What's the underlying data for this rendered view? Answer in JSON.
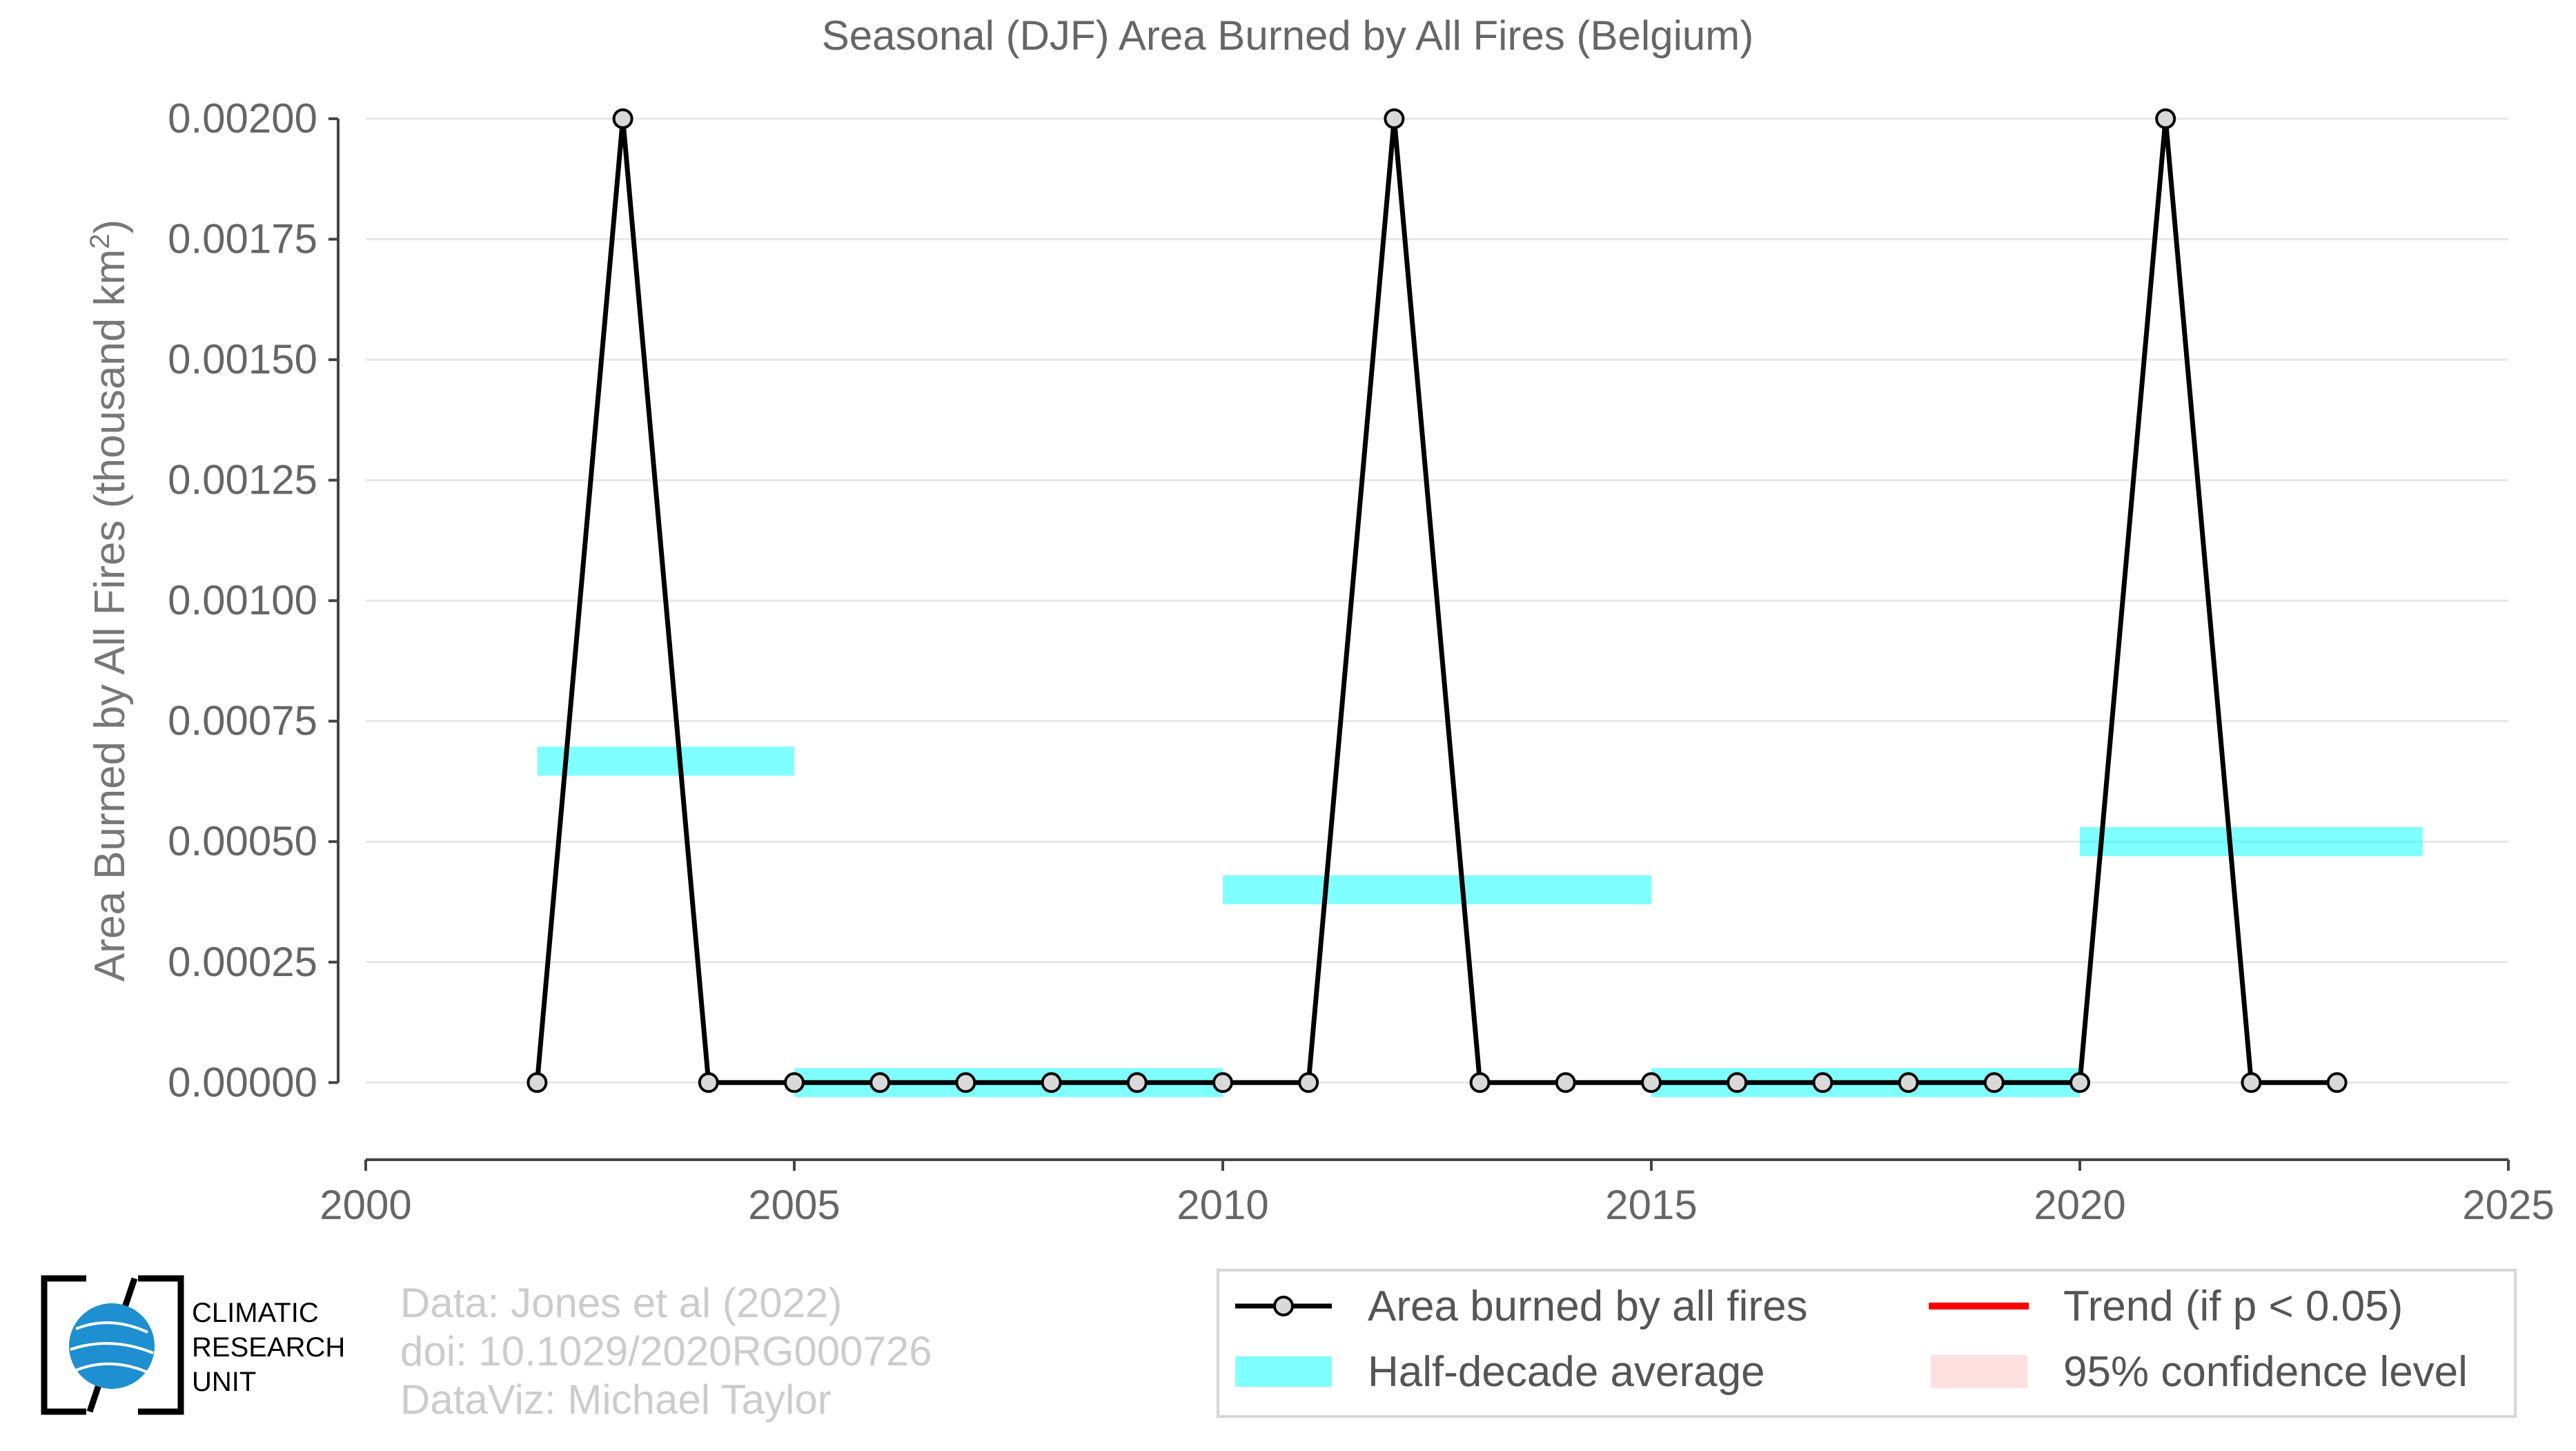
{
  "chart_data": {
    "type": "line",
    "title": "Seasonal (DJF) Area Burned by All Fires (Belgium)",
    "ylabel": "Area Burned by All Fires (thousand km",
    "ylabel_sup": "2",
    "ylabel_close": ")",
    "xlim": [
      2000,
      2025
    ],
    "ylim": [
      -0.00016,
      0.002
    ],
    "x_ticks": [
      2000,
      2005,
      2010,
      2015,
      2020,
      2025
    ],
    "x_tick_labels": [
      "2000",
      "2005",
      "2010",
      "2015",
      "2020",
      "2025"
    ],
    "y_ticks": [
      0,
      0.00025,
      0.0005,
      0.00075,
      0.001,
      0.00125,
      0.0015,
      0.00175,
      0.002
    ],
    "y_tick_labels": [
      "0.00000",
      "0.00025",
      "0.00050",
      "0.00075",
      "0.00100",
      "0.00125",
      "0.00150",
      "0.00175",
      "0.00200"
    ],
    "grid": true,
    "series": [
      {
        "name": "Area burned by all fires",
        "color": "#000000",
        "x": [
          2002,
          2003,
          2004,
          2005,
          2006,
          2007,
          2008,
          2009,
          2010,
          2011,
          2012,
          2013,
          2014,
          2015,
          2016,
          2017,
          2018,
          2019,
          2020,
          2021,
          2022,
          2023
        ],
        "y": [
          0,
          0.002,
          0,
          0,
          0,
          0,
          0,
          0,
          0,
          0,
          0.002,
          0,
          0,
          0,
          0,
          0,
          0,
          0,
          0,
          0.002,
          0,
          0
        ]
      }
    ],
    "half_decade_average": {
      "name": "Half-decade average",
      "color": "#00ffff",
      "segments": [
        {
          "x0": 2002,
          "x1": 2005,
          "value": 0.000667
        },
        {
          "x0": 2005,
          "x1": 2010,
          "value": 0.0
        },
        {
          "x0": 2010,
          "x1": 2015,
          "value": 0.0004
        },
        {
          "x0": 2015,
          "x1": 2020,
          "value": 0.0
        },
        {
          "x0": 2020,
          "x1": 2024,
          "value": 0.0005
        }
      ]
    },
    "legend": {
      "placement": "bottom-right",
      "entries": [
        {
          "label": "Area burned by all fires",
          "kind": "line-marker",
          "color": "#000000"
        },
        {
          "label": "Trend (if p < 0.05)",
          "kind": "line",
          "color": "#ff0000"
        },
        {
          "label": "Half-decade average",
          "kind": "band",
          "color": "#00ffff"
        },
        {
          "label": "95% confidence level",
          "kind": "band",
          "color": "#ffcccc"
        }
      ]
    }
  },
  "credits": {
    "line1": "Data: Jones et al (2022)",
    "line2": "doi: 10.1029/2020RG000726",
    "line3": "DataViz: Michael Taylor"
  },
  "logo": {
    "line1": "CLIMATIC",
    "line2": "RESEARCH",
    "line3": "UNIT"
  }
}
